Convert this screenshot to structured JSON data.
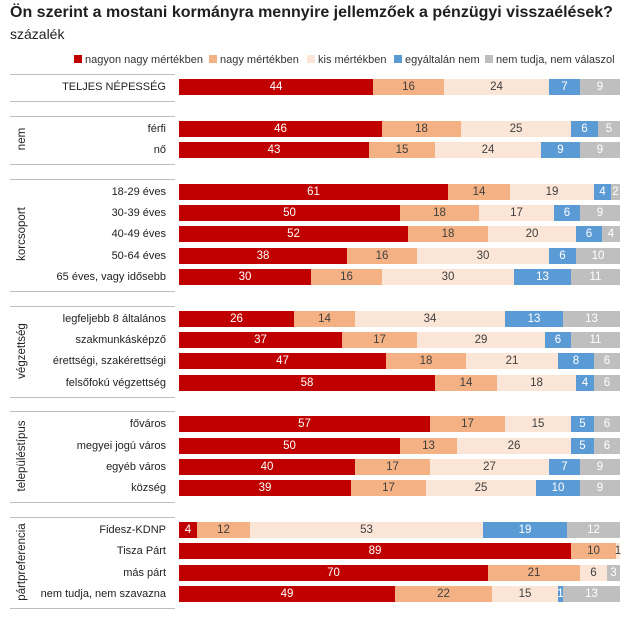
{
  "chart_data": {
    "type": "bar",
    "orientation": "horizontal",
    "stacked": true,
    "title": "Ön szerint a mostani kormányra mennyire jellemzőek a pénzügyi visszaélések?",
    "subtitle": "százalék",
    "xlim": [
      0,
      100
    ],
    "legend_position": "top",
    "categories": [
      "TELJES NÉPESSÉG",
      "férfi",
      "nő",
      "18-29 éves",
      "30-39 éves",
      "40-49 éves",
      "50-64 éves",
      "65 éves, vagy idősebb",
      "legfeljebb 8 általános",
      "szakmunkásképző",
      "érettségi, szakérettségi",
      "felsőfokú végzettség",
      "főváros",
      "megyei jogú város",
      "egyéb város",
      "község",
      "Fidesz-KDNP",
      "Tisza Párt",
      "más párt",
      "nem tudja, nem szavazna"
    ],
    "category_groups": [
      {
        "label": "",
        "size": 1
      },
      {
        "label": "nem",
        "size": 2
      },
      {
        "label": "korcsoport",
        "size": 5
      },
      {
        "label": "végzettség",
        "size": 4
      },
      {
        "label": "településtípus",
        "size": 4
      },
      {
        "label": "pártpreferencia",
        "size": 4
      }
    ],
    "series": [
      {
        "name": "nagyon nagy mértékben",
        "color": "#C00000",
        "label_color": "#FFFFFF",
        "values": [
          44,
          46,
          43,
          61,
          50,
          52,
          38,
          30,
          26,
          37,
          47,
          58,
          57,
          50,
          40,
          39,
          4,
          89,
          70,
          49
        ]
      },
      {
        "name": "nagy mértékben",
        "color": "#F4B183",
        "label_color": "#404040",
        "values": [
          16,
          18,
          15,
          14,
          18,
          18,
          16,
          16,
          14,
          17,
          18,
          14,
          17,
          13,
          17,
          17,
          12,
          10,
          21,
          22
        ]
      },
      {
        "name": "kis mértékben",
        "color": "#FBE5D6",
        "label_color": "#404040",
        "values": [
          24,
          25,
          24,
          19,
          17,
          20,
          30,
          30,
          34,
          29,
          21,
          18,
          15,
          26,
          27,
          25,
          53,
          1,
          6,
          15
        ]
      },
      {
        "name": "egyáltalán nem",
        "color": "#5B9BD5",
        "label_color": "#FFFFFF",
        "values": [
          7,
          6,
          9,
          4,
          6,
          6,
          6,
          13,
          13,
          6,
          8,
          4,
          5,
          5,
          7,
          10,
          19,
          0,
          0,
          1
        ]
      },
      {
        "name": "nem tudja, nem válaszol",
        "color": "#BFBFBF",
        "label_color": "#FFFFFF",
        "values": [
          9,
          5,
          9,
          2,
          9,
          4,
          10,
          11,
          13,
          11,
          6,
          6,
          6,
          6,
          9,
          9,
          12,
          0,
          3,
          13
        ]
      }
    ]
  }
}
